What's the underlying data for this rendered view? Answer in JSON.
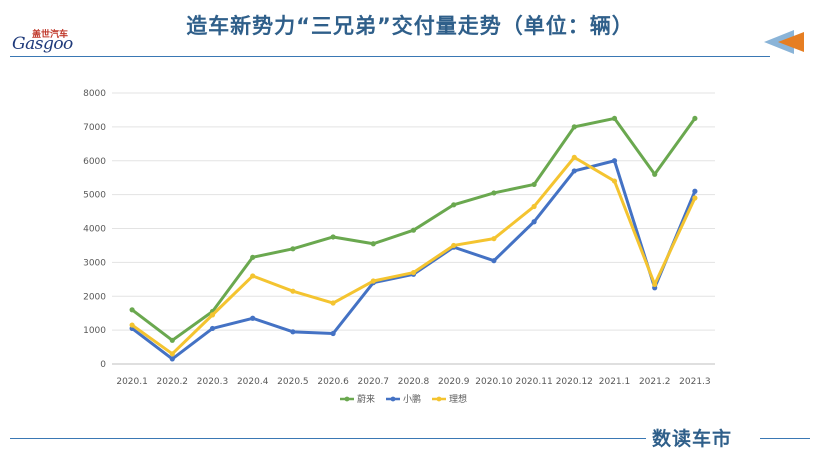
{
  "logo": {
    "name_cn": "盖世汽车",
    "name_en": "Gasgoo"
  },
  "page": {
    "title": "造车新势力“三兄弟”交付量走势（单位：辆）",
    "brand": "数读车市"
  },
  "colors": {
    "title": "#2f5f8a",
    "rule": "#3a78b4",
    "nio": "#6aa84f",
    "xpeng": "#4472c4",
    "li": "#f4c430",
    "arrow_blue": "#8ab4d8",
    "arrow_orange": "#e67e22"
  },
  "chart_data": {
    "type": "line",
    "title": "",
    "xlabel": "",
    "ylabel": "",
    "ylim": [
      0,
      8000
    ],
    "yticks": [
      0,
      1000,
      2000,
      3000,
      4000,
      5000,
      6000,
      7000,
      8000
    ],
    "grid": true,
    "legend_position": "bottom",
    "categories": [
      "2020.1",
      "2020.2",
      "2020.3",
      "2020.4",
      "2020.5",
      "2020.6",
      "2020.7",
      "2020.8",
      "2020.9",
      "2020.10",
      "2020.11",
      "2020.12",
      "2021.1",
      "2021.2",
      "2021.3"
    ],
    "series": [
      {
        "name": "蔚来",
        "color": "#6aa84f",
        "values": [
          1600,
          700,
          1550,
          3150,
          3400,
          3750,
          3550,
          3950,
          4700,
          5050,
          5300,
          7000,
          7250,
          5600,
          7250
        ]
      },
      {
        "name": "小鹏",
        "color": "#4472c4",
        "values": [
          1050,
          150,
          1050,
          1350,
          950,
          900,
          2400,
          2650,
          3450,
          3050,
          4200,
          5700,
          6000,
          2250,
          5100
        ]
      },
      {
        "name": "理想",
        "color": "#f4c430",
        "values": [
          1150,
          300,
          1450,
          2600,
          2150,
          1800,
          2450,
          2700,
          3500,
          3700,
          4650,
          6100,
          5400,
          2350,
          4900
        ]
      }
    ]
  }
}
